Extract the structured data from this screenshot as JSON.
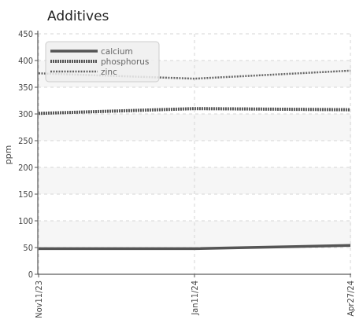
{
  "chart_data": {
    "type": "line",
    "title": "Additives",
    "xlabel": "",
    "ylabel": "ppm",
    "ylim": [
      0,
      450
    ],
    "yticks": [
      "0",
      "50",
      "100",
      "150",
      "200",
      "250",
      "300",
      "350",
      "400",
      "450"
    ],
    "x": [
      "Nov11/23",
      "Jan11/24",
      "Apr27/24"
    ],
    "grid": true,
    "legend_position": "top-left",
    "series": [
      {
        "name": "calcium",
        "values": [
          48,
          48,
          54
        ],
        "color": "#555555",
        "style": "solid"
      },
      {
        "name": "phosphorus",
        "values": [
          301,
          310,
          308
        ],
        "color": "#555555",
        "style": "dashed"
      },
      {
        "name": "zinc",
        "values": [
          376,
          366,
          381
        ],
        "color": "#666666",
        "style": "dotted"
      }
    ]
  }
}
